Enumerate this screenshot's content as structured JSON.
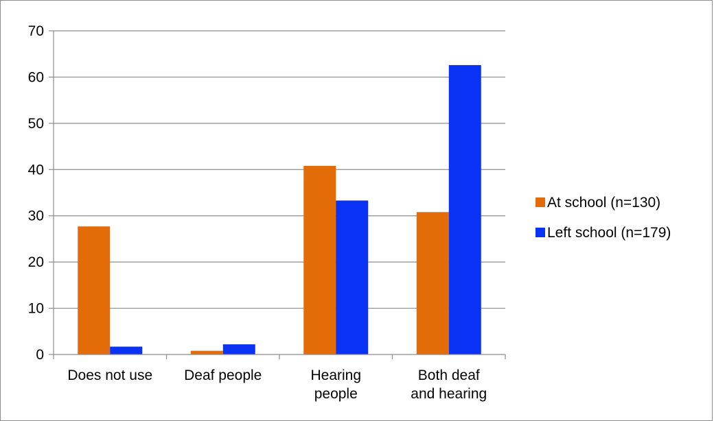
{
  "chart_data": {
    "type": "bar",
    "title": "",
    "xlabel": "",
    "ylabel": "",
    "ylim": [
      0,
      70
    ],
    "yticks": [
      0,
      10,
      20,
      30,
      40,
      50,
      60,
      70
    ],
    "grid": true,
    "legend_position": "right",
    "categories": [
      [
        "Does not use"
      ],
      [
        "Deaf people"
      ],
      [
        "Hearing",
        "people"
      ],
      [
        "Both deaf",
        "and hearing"
      ]
    ],
    "series": [
      {
        "name": "At school (n=130)",
        "color": "#e36c09",
        "values": [
          27.7,
          0.8,
          40.8,
          30.8
        ]
      },
      {
        "name": "Left school (n=179)",
        "color": "#0a32f5",
        "values": [
          1.7,
          2.2,
          33.3,
          62.6
        ]
      }
    ]
  }
}
